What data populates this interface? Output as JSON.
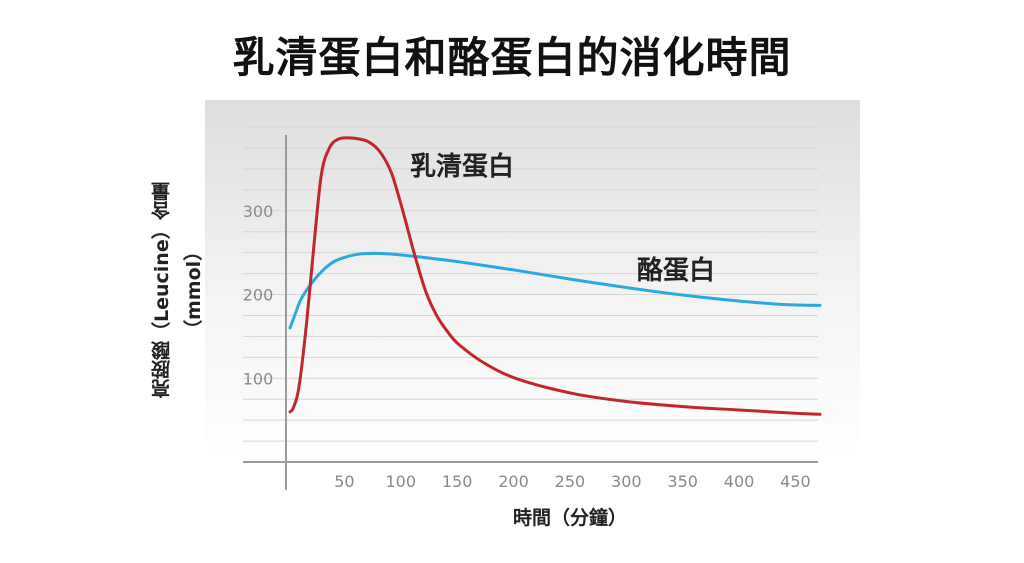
{
  "title": "乳清蛋白和酪蛋白的消化時間",
  "chart_data": {
    "type": "line",
    "title": "乳清蛋白和酪蛋白的消化時間",
    "xlabel": "時間（分鐘）",
    "ylabel_line1": "亮胺酸（Leucine）含量",
    "ylabel_line2": "（mmol）",
    "xlim": [
      0,
      470
    ],
    "ylim": [
      0,
      400
    ],
    "x_ticks": [
      50,
      100,
      150,
      200,
      250,
      300,
      350,
      400,
      450
    ],
    "y_ticks": [
      100,
      200,
      300
    ],
    "grid": true,
    "series": [
      {
        "name": "乳清蛋白",
        "color": "#c0272d",
        "x": [
          0,
          3,
          8,
          15,
          22,
          28,
          35,
          42,
          50,
          60,
          70,
          80,
          90,
          100,
          110,
          120,
          130,
          140,
          150,
          170,
          200,
          250,
          300,
          350,
          400,
          450,
          470
        ],
        "y": [
          60,
          65,
          90,
          170,
          270,
          345,
          375,
          385,
          387,
          386,
          382,
          370,
          345,
          300,
          250,
          205,
          175,
          155,
          140,
          120,
          100,
          82,
          72,
          66,
          62,
          58,
          57
        ]
      },
      {
        "name": "酪蛋白",
        "color": "#29a9df",
        "x": [
          0,
          5,
          10,
          20,
          30,
          40,
          50,
          60,
          70,
          80,
          100,
          120,
          150,
          200,
          250,
          300,
          350,
          400,
          440,
          470
        ],
        "y": [
          160,
          178,
          195,
          215,
          230,
          240,
          245,
          248,
          249,
          249,
          247,
          244,
          239,
          229,
          218,
          208,
          199,
          192,
          188,
          187
        ]
      }
    ]
  }
}
